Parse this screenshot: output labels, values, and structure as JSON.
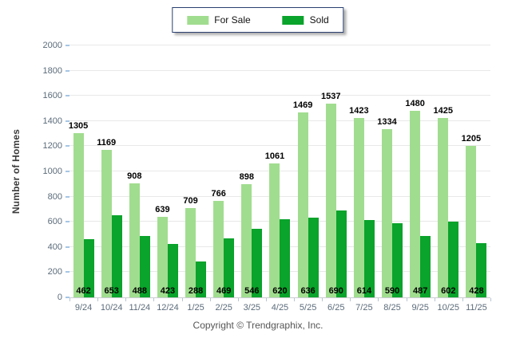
{
  "legend": {
    "items": [
      {
        "label": "For Sale",
        "color": "#A1DD8F"
      },
      {
        "label": "Sold",
        "color": "#0AA32B"
      }
    ]
  },
  "chart_data": {
    "type": "bar",
    "title": "",
    "xlabel": "",
    "ylabel": "Number of Homes",
    "ylim": [
      0,
      2000
    ],
    "ytick_step": 200,
    "grid": true,
    "legend_position": "top-center",
    "categories": [
      "9/24",
      "10/24",
      "11/24",
      "12/24",
      "1/25",
      "2/25",
      "3/25",
      "4/25",
      "5/25",
      "6/25",
      "7/25",
      "8/25",
      "9/25",
      "10/25",
      "11/25"
    ],
    "series": [
      {
        "name": "For Sale",
        "color": "#A1DD8F",
        "values": [
          1305,
          1169,
          908,
          639,
          709,
          766,
          898,
          1061,
          1469,
          1537,
          1423,
          1334,
          1480,
          1425,
          1205
        ]
      },
      {
        "name": "Sold",
        "color": "#0AA32B",
        "values": [
          462,
          653,
          488,
          423,
          288,
          469,
          546,
          620,
          636,
          690,
          614,
          590,
          487,
          602,
          428
        ]
      }
    ]
  },
  "footer": {
    "copyright": "Copyright © Trendgraphix, Inc."
  }
}
